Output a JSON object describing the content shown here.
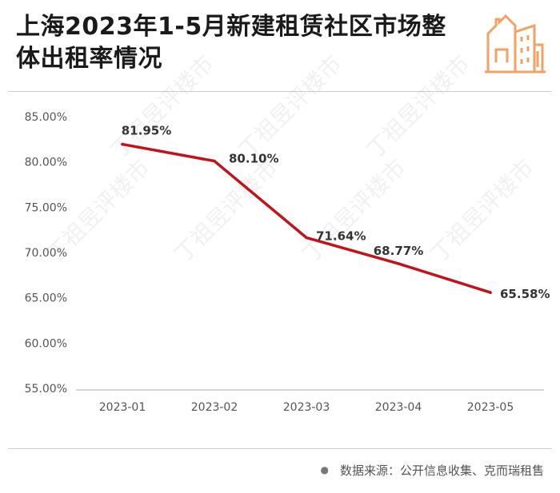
{
  "title": "上海2023年1-5月新建租赁社区市场整体出租率情况",
  "source": "数据来源：公开信息收集、克而瑞租售",
  "watermark": "丁祖昱评楼市",
  "logo_icon": "city-buildings-icon",
  "colors": {
    "line": "#c0141c",
    "logo": "#f2a262",
    "axis": "#c8c8c8",
    "label": "#333333"
  },
  "chart_data": {
    "type": "line",
    "title": "",
    "xlabel": "",
    "ylabel": "",
    "categories": [
      "2023-01",
      "2023-02",
      "2023-03",
      "2023-04",
      "2023-05"
    ],
    "series": [
      {
        "values": [
          81.95,
          80.1,
          71.64,
          68.77,
          65.58
        ]
      }
    ],
    "data_labels": [
      "81.95%",
      "80.10%",
      "71.64%",
      "68.77%",
      "65.58%"
    ],
    "y_ticks": [
      "55.00%",
      "60.00%",
      "65.00%",
      "70.00%",
      "75.00%",
      "80.00%",
      "85.00%"
    ],
    "ylim": [
      55,
      85
    ],
    "grid": false,
    "legend": "none"
  }
}
